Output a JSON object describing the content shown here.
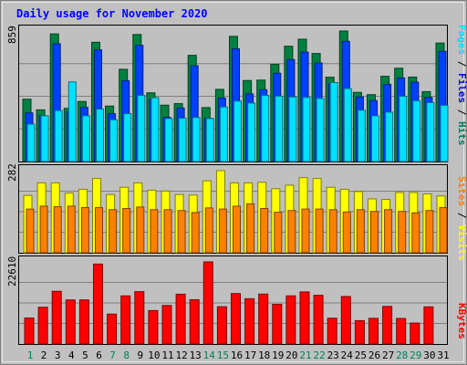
{
  "chart_data": [
    {
      "panel": "hits-files-pages",
      "type": "bar",
      "title": "Daily usage for November 2020",
      "ymax_label": "859",
      "ymax": 859,
      "side_labels": [
        "Pages",
        "Files",
        "Hits"
      ],
      "categories": [
        "1",
        "2",
        "3",
        "4",
        "5",
        "6",
        "7",
        "8",
        "9",
        "10",
        "11",
        "12",
        "13",
        "14",
        "15",
        "16",
        "17",
        "18",
        "19",
        "20",
        "21",
        "22",
        "23",
        "24",
        "25",
        "26",
        "27",
        "28",
        "29",
        "30",
        "31"
      ],
      "weekend_days": [
        "1",
        "7",
        "8",
        "14",
        "15",
        "21",
        "22",
        "28",
        "29"
      ],
      "series": [
        {
          "name": "Hits",
          "color": "#008040",
          "values": [
            410,
            340,
            840,
            350,
            395,
            785,
            365,
            607,
            836,
            452,
            371,
            381,
            699,
            355,
            475,
            824,
            533,
            536,
            640,
            759,
            805,
            711,
            555,
            859,
            455,
            440,
            561,
            614,
            556,
            460,
            780
          ]
        },
        {
          "name": "Files",
          "color": "#0040ff",
          "values": [
            320,
            301,
            775,
            326,
            356,
            735,
            315,
            532,
            765,
            410,
            291,
            352,
            630,
            284,
            418,
            742,
            445,
            473,
            581,
            671,
            720,
            648,
            512,
            791,
            425,
            401,
            508,
            550,
            522,
            422,
            725
          ]
        },
        {
          "name": "Pages",
          "color": "#00e0ff",
          "values": [
            246,
            301,
            335,
            524,
            301,
            345,
            275,
            315,
            435,
            420,
            283,
            285,
            290,
            283,
            359,
            398,
            385,
            435,
            430,
            425,
            422,
            415,
            520,
            480,
            338,
            301,
            325,
            429,
            400,
            388,
            370
          ]
        }
      ]
    },
    {
      "panel": "visits-sites",
      "type": "bar",
      "ymax_label": "282",
      "ymax": 282,
      "side_labels": [
        "Sites",
        "Visits"
      ],
      "categories": [
        "1",
        "2",
        "3",
        "4",
        "5",
        "6",
        "7",
        "8",
        "9",
        "10",
        "11",
        "12",
        "13",
        "14",
        "15",
        "16",
        "17",
        "18",
        "19",
        "20",
        "21",
        "22",
        "23",
        "24",
        "25",
        "26",
        "27",
        "28",
        "29",
        "30",
        "31"
      ],
      "series": [
        {
          "name": "Visits",
          "color": "#ffff00",
          "values": [
            197,
            240,
            240,
            205,
            218,
            255,
            200,
            225,
            240,
            215,
            212,
            200,
            198,
            247,
            282,
            240,
            240,
            242,
            220,
            232,
            258,
            255,
            225,
            218,
            210,
            185,
            183,
            207,
            207,
            202,
            195
          ]
        },
        {
          "name": "Sites",
          "color": "#ff8000",
          "values": [
            150,
            160,
            158,
            160,
            155,
            155,
            148,
            152,
            157,
            148,
            148,
            145,
            138,
            154,
            150,
            160,
            168,
            152,
            139,
            145,
            150,
            150,
            148,
            140,
            148,
            142,
            148,
            142,
            137,
            145,
            155
          ]
        }
      ]
    },
    {
      "panel": "kbytes",
      "type": "bar",
      "ymax_label": "22610",
      "ymax": 22610,
      "side_labels": [
        "KBytes"
      ],
      "categories": [
        "1",
        "2",
        "3",
        "4",
        "5",
        "6",
        "7",
        "8",
        "9",
        "10",
        "11",
        "12",
        "13",
        "14",
        "15",
        "16",
        "17",
        "18",
        "19",
        "20",
        "21",
        "22",
        "23",
        "24",
        "25",
        "26",
        "27",
        "28",
        "29",
        "30",
        "31"
      ],
      "series": [
        {
          "name": "KBytes",
          "color": "#ff0000",
          "values": [
            7160,
            10110,
            14510,
            12130,
            12130,
            22010,
            8230,
            13250,
            14410,
            9210,
            10610,
            13710,
            12190,
            22610,
            10270,
            13890,
            12460,
            13740,
            10920,
            13260,
            14340,
            13410,
            7100,
            13080,
            6430,
            7070,
            10350,
            7030,
            5770,
            10220,
            0
          ]
        }
      ]
    }
  ],
  "colors": {
    "panel_bg": "#c0c0c0",
    "gridline": "#808080",
    "label_blue": "#0000ff",
    "label_green": "#00805c",
    "label_orange": "#ff8000",
    "label_yellow": "#ffff00",
    "label_cyan": "#00e0ff",
    "label_red": "#ff0000"
  }
}
